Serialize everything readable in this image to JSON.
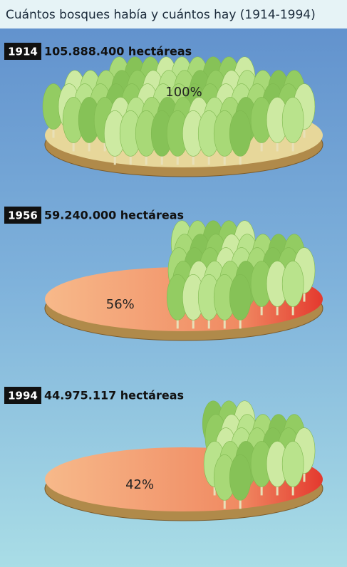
{
  "chart_data": {
    "type": "forest-disc",
    "title": "Cuántos bosques había y cuántos hay (1914-1994)",
    "categories": [
      "1914",
      "1956",
      "1994"
    ],
    "subtitles": [
      "105.888.400 hectáreas",
      "59.240.000 hectáreas",
      "44.975.117 hectáreas"
    ],
    "values": [
      100,
      56,
      42
    ],
    "value_labels": [
      "100%",
      "56%",
      "42%"
    ],
    "color": "#9fd46e"
  }
}
